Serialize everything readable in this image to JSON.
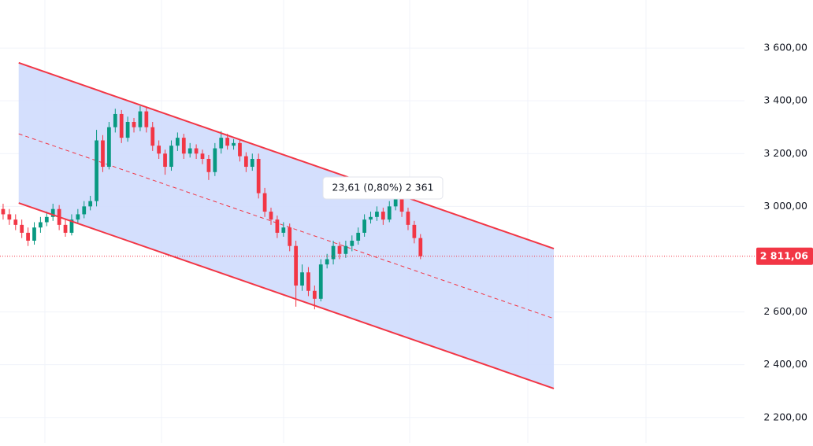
{
  "chart_data": {
    "type": "candlestick",
    "x": [
      0,
      1,
      2,
      3,
      4,
      5,
      6,
      7,
      8,
      9,
      10,
      11,
      12,
      13,
      14,
      15,
      16,
      17,
      18,
      19,
      20,
      21,
      22,
      23,
      24,
      25,
      26,
      27,
      28,
      29,
      30,
      31,
      32,
      33,
      34,
      35,
      36,
      37,
      38,
      39,
      40,
      41,
      42,
      43,
      44,
      45,
      46,
      47,
      48,
      49,
      50,
      51,
      52,
      53,
      54,
      55,
      56,
      57,
      58,
      59,
      60,
      61,
      62,
      63,
      64,
      65,
      66,
      67
    ],
    "open": [
      2990,
      2970,
      2950,
      2930,
      2900,
      2870,
      2920,
      2940,
      2960,
      2990,
      2930,
      2900,
      2950,
      2970,
      3000,
      3020,
      3250,
      3150,
      3300,
      3350,
      3260,
      3320,
      3300,
      3360,
      3300,
      3230,
      3200,
      3150,
      3230,
      3260,
      3200,
      3220,
      3200,
      3180,
      3130,
      3220,
      3260,
      3230,
      3240,
      3190,
      3150,
      3180,
      3050,
      2980,
      2950,
      2900,
      2920,
      2850,
      2700,
      2750,
      2680,
      2650,
      2780,
      2800,
      2850,
      2820,
      2850,
      2870,
      2900,
      2950,
      2960,
      2980,
      2950,
      3000,
      3030,
      2980,
      2930,
      2880
    ],
    "high": [
      3010,
      2990,
      2970,
      2950,
      2920,
      2940,
      2960,
      2980,
      3010,
      3005,
      2950,
      2970,
      2990,
      3020,
      3040,
      3290,
      3270,
      3320,
      3370,
      3365,
      3340,
      3335,
      3380,
      3375,
      3320,
      3250,
      3215,
      3250,
      3280,
      3275,
      3240,
      3235,
      3215,
      3195,
      3240,
      3285,
      3275,
      3255,
      3255,
      3205,
      3200,
      3200,
      3070,
      2995,
      2965,
      2940,
      2935,
      2870,
      2780,
      2770,
      2700,
      2800,
      2820,
      2870,
      2865,
      2870,
      2890,
      2920,
      2970,
      2980,
      3000,
      2995,
      3020,
      3050,
      3045,
      2995,
      2945,
      2895
    ],
    "low": [
      2950,
      2930,
      2910,
      2880,
      2850,
      2855,
      2900,
      2925,
      2945,
      2910,
      2885,
      2890,
      2935,
      2955,
      2985,
      3000,
      3130,
      3140,
      3280,
      3240,
      3245,
      3280,
      3285,
      3280,
      3210,
      3180,
      3120,
      3135,
      3210,
      3180,
      3185,
      3180,
      3160,
      3100,
      3115,
      3200,
      3215,
      3215,
      3170,
      3130,
      3135,
      3030,
      2960,
      2930,
      2880,
      2885,
      2830,
      2620,
      2680,
      2660,
      2610,
      2640,
      2765,
      2780,
      2800,
      2805,
      2830,
      2855,
      2885,
      2935,
      2945,
      2930,
      2940,
      2985,
      2960,
      2910,
      2860,
      2800
    ],
    "close": [
      2970,
      2950,
      2930,
      2900,
      2870,
      2920,
      2940,
      2960,
      2990,
      2930,
      2900,
      2950,
      2970,
      3000,
      3020,
      3250,
      3150,
      3300,
      3350,
      3260,
      3320,
      3300,
      3360,
      3300,
      3230,
      3200,
      3150,
      3230,
      3260,
      3200,
      3220,
      3200,
      3180,
      3130,
      3220,
      3260,
      3230,
      3240,
      3190,
      3150,
      3180,
      3050,
      2980,
      2950,
      2900,
      2920,
      2850,
      2700,
      2750,
      2680,
      2650,
      2780,
      2800,
      2850,
      2820,
      2850,
      2870,
      2900,
      2950,
      2960,
      2980,
      2950,
      3000,
      3030,
      2980,
      2930,
      2880,
      2811.06
    ],
    "up_color": "#089981",
    "down_color": "#f23645",
    "xlim": [
      -0.5,
      119
    ],
    "ylim": [
      2104,
      3782
    ],
    "yticks": [
      {
        "value": 2200,
        "label": "2 200,00"
      },
      {
        "value": 2400,
        "label": "2 400,00"
      },
      {
        "value": 2600,
        "label": "2 600,00"
      },
      {
        "value": 3000,
        "label": "3 000,00"
      },
      {
        "value": 3200,
        "label": "3 200,00"
      },
      {
        "value": 3400,
        "label": "3 400,00"
      },
      {
        "value": 3600,
        "label": "3 600,00"
      }
    ],
    "grid": true,
    "channel": {
      "x": [
        2.5,
        88.4
      ],
      "upper": [
        3544,
        2840
      ],
      "middle": [
        3275,
        2575
      ],
      "lower": [
        3013,
        2310
      ],
      "color": "#f23645",
      "fill": "#cfdcfd"
    },
    "last_price": {
      "value": 2811.06,
      "label": "2 811,06",
      "color": "#f23645"
    },
    "annotation": "23,61 (0,80%) 2 361"
  }
}
